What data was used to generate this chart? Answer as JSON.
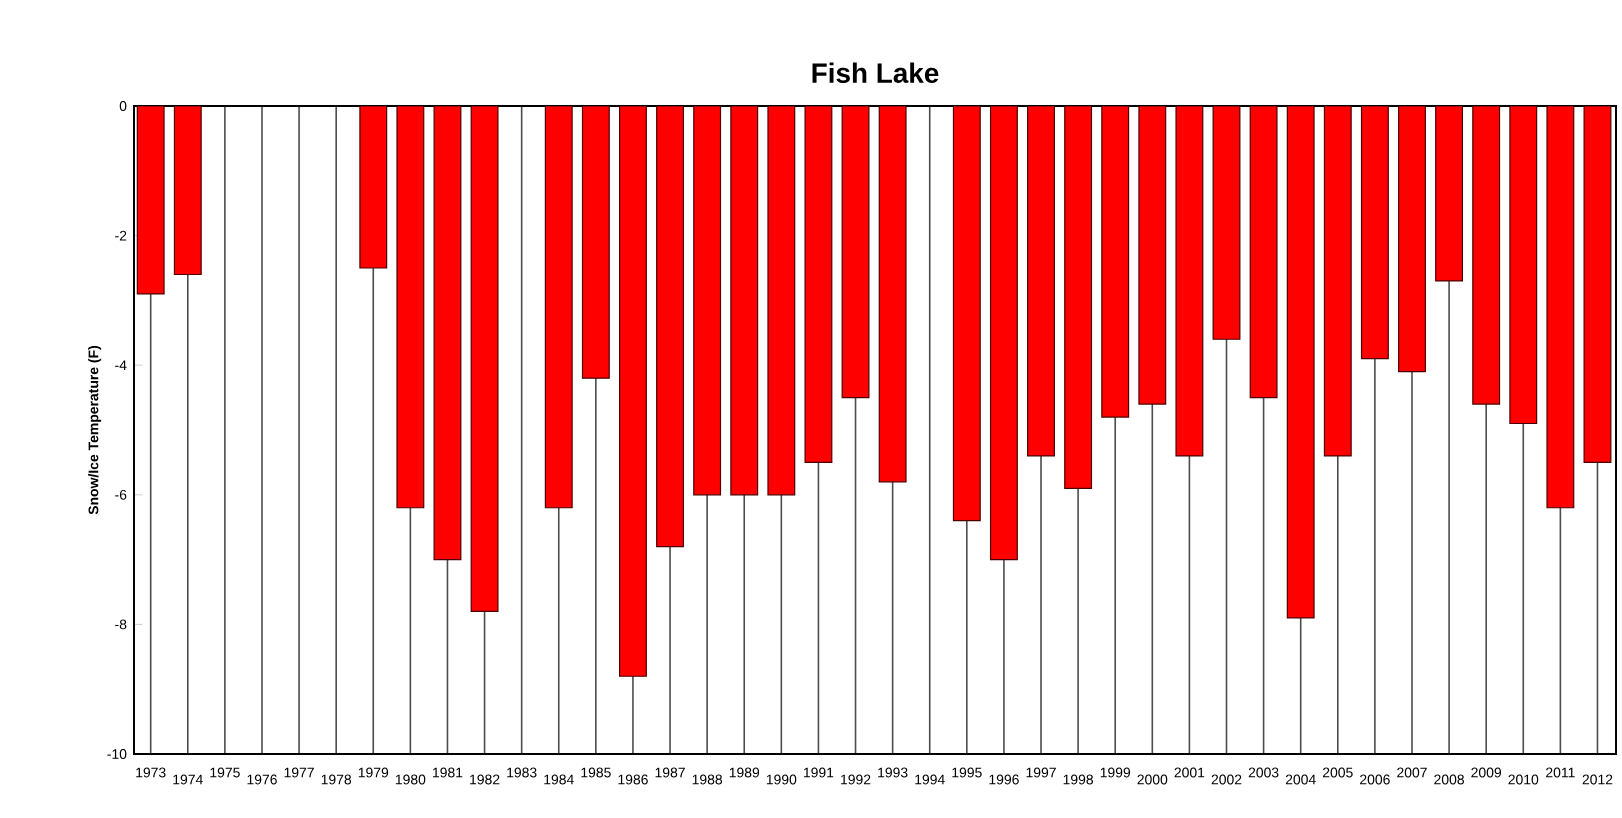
{
  "chart_data": {
    "type": "bar",
    "title": "Fish Lake",
    "ylabel": "Snow/Ice Temperature (F)",
    "categories": [
      "1973",
      "1974",
      "1975",
      "1976",
      "1977",
      "1978",
      "1979",
      "1980",
      "1981",
      "1982",
      "1983",
      "1984",
      "1985",
      "1986",
      "1987",
      "1988",
      "1989",
      "1990",
      "1991",
      "1992",
      "1993",
      "1994",
      "1995",
      "1996",
      "1997",
      "1998",
      "1999",
      "2000",
      "2001",
      "2002",
      "2003",
      "2004",
      "2005",
      "2006",
      "2007",
      "2008",
      "2009",
      "2010",
      "2011",
      "2012"
    ],
    "values": [
      -2.9,
      -2.6,
      null,
      null,
      null,
      null,
      -2.5,
      -6.2,
      -7.0,
      -7.8,
      null,
      -6.2,
      -4.2,
      -8.8,
      -6.8,
      -6.0,
      -6.0,
      -6.0,
      -5.5,
      -4.5,
      -5.8,
      null,
      -6.4,
      -7.0,
      -5.4,
      -5.9,
      -4.8,
      -4.6,
      -5.4,
      -3.6,
      -4.5,
      -7.9,
      -5.4,
      -3.9,
      -4.1,
      -2.7,
      -4.6,
      -4.9,
      -6.2,
      -5.5
    ],
    "color": "#ff0000",
    "ylim": [
      -10,
      0
    ],
    "yticks": [
      -10,
      -8,
      -6,
      -4,
      -2,
      0
    ],
    "grid": "x"
  }
}
